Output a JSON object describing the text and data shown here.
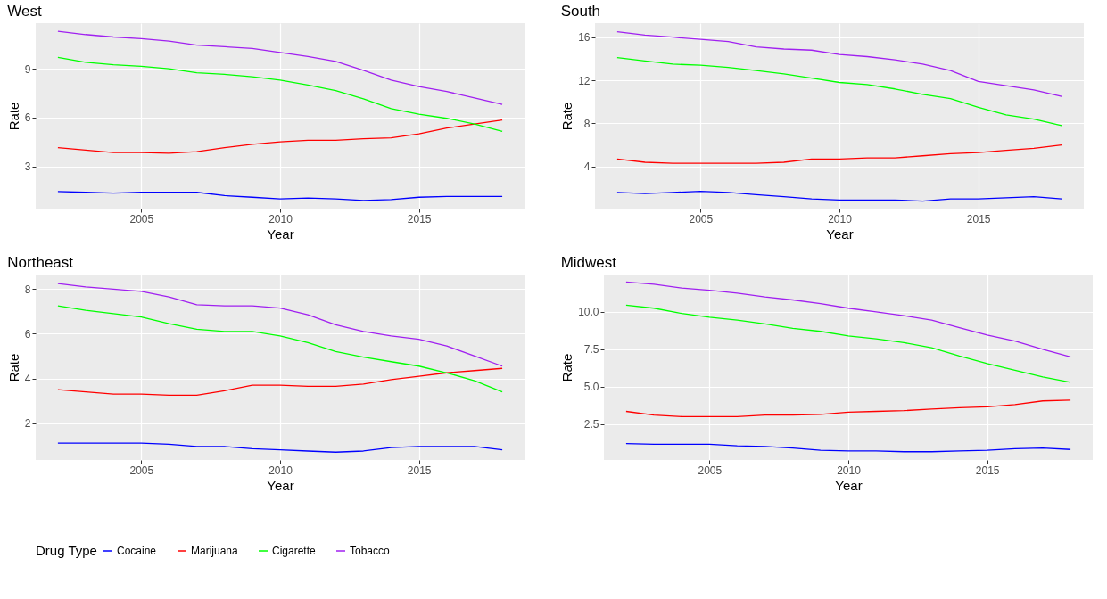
{
  "chart_data": [
    {
      "type": "line",
      "title": "West",
      "xlabel": "Year",
      "ylabel": "Rate",
      "legend": "bottom",
      "legend_title": "Drug Type",
      "grid": true,
      "line_style": "solid",
      "x": [
        2002,
        2003,
        2004,
        2005,
        2006,
        2007,
        2008,
        2009,
        2010,
        2011,
        2012,
        2013,
        2014,
        2015,
        2016,
        2017,
        2018
      ],
      "xlim": [
        2001.2,
        2018.8
      ],
      "xticks": [
        2005,
        2010,
        2015
      ],
      "ylim": [
        0.4,
        11.8
      ],
      "yticks": [
        3,
        6,
        9
      ],
      "series": [
        {
          "name": "Cocaine",
          "color": "#0000ff",
          "values": [
            1.45,
            1.4,
            1.35,
            1.4,
            1.4,
            1.4,
            1.2,
            1.1,
            1.0,
            1.05,
            1.0,
            0.9,
            0.95,
            1.1,
            1.15,
            1.15,
            1.15
          ]
        },
        {
          "name": "Marijuana",
          "color": "#ff0000",
          "values": [
            4.15,
            4.0,
            3.85,
            3.85,
            3.8,
            3.9,
            4.15,
            4.35,
            4.5,
            4.6,
            4.6,
            4.7,
            4.75,
            5.0,
            5.35,
            5.6,
            5.85
          ]
        },
        {
          "name": "Cigarette",
          "color": "#00ff00",
          "values": [
            9.7,
            9.4,
            9.25,
            9.15,
            9.0,
            8.75,
            8.65,
            8.5,
            8.3,
            8.0,
            7.65,
            7.15,
            6.55,
            6.2,
            5.95,
            5.6,
            5.15
          ]
        },
        {
          "name": "Tobacco",
          "color": "#a020f0",
          "values": [
            11.3,
            11.1,
            10.95,
            10.85,
            10.7,
            10.45,
            10.35,
            10.25,
            10.0,
            9.75,
            9.45,
            8.9,
            8.3,
            7.9,
            7.6,
            7.2,
            6.8
          ]
        }
      ]
    },
    {
      "type": "line",
      "title": "South",
      "xlabel": "Year",
      "ylabel": "Rate",
      "legend": "bottom",
      "grid": true,
      "line_style": "solid",
      "x": [
        2002,
        2003,
        2004,
        2005,
        2006,
        2007,
        2008,
        2009,
        2010,
        2011,
        2012,
        2013,
        2014,
        2015,
        2016,
        2017,
        2018
      ],
      "xlim": [
        2001.2,
        2018.8
      ],
      "xticks": [
        2005,
        2010,
        2015
      ],
      "ylim": [
        0.1,
        17.3
      ],
      "yticks": [
        4,
        8,
        12,
        16
      ],
      "series": [
        {
          "name": "Cocaine",
          "color": "#0000ff",
          "values": [
            1.6,
            1.5,
            1.6,
            1.7,
            1.6,
            1.4,
            1.2,
            1.0,
            0.9,
            0.9,
            0.9,
            0.8,
            1.0,
            1.0,
            1.1,
            1.2,
            1.0
          ]
        },
        {
          "name": "Marijuana",
          "color": "#ff0000",
          "values": [
            4.7,
            4.4,
            4.3,
            4.3,
            4.3,
            4.3,
            4.4,
            4.7,
            4.7,
            4.8,
            4.8,
            5.0,
            5.2,
            5.3,
            5.5,
            5.7,
            6.0
          ]
        },
        {
          "name": "Cigarette",
          "color": "#00ff00",
          "values": [
            14.1,
            13.8,
            13.5,
            13.4,
            13.2,
            12.9,
            12.6,
            12.2,
            11.8,
            11.6,
            11.2,
            10.7,
            10.3,
            9.5,
            8.8,
            8.4,
            7.8
          ]
        },
        {
          "name": "Tobacco",
          "color": "#a020f0",
          "values": [
            16.5,
            16.2,
            16.0,
            15.8,
            15.6,
            15.1,
            14.9,
            14.8,
            14.4,
            14.2,
            13.9,
            13.5,
            12.9,
            11.9,
            11.5,
            11.1,
            10.5
          ]
        }
      ]
    },
    {
      "type": "line",
      "title": "Northeast",
      "xlabel": "Year",
      "ylabel": "Rate",
      "legend": "bottom",
      "grid": true,
      "line_style": "solid",
      "x": [
        2002,
        2003,
        2004,
        2005,
        2006,
        2007,
        2008,
        2009,
        2010,
        2011,
        2012,
        2013,
        2014,
        2015,
        2016,
        2017,
        2018
      ],
      "xlim": [
        2001.2,
        2018.8
      ],
      "xticks": [
        2005,
        2010,
        2015
      ],
      "ylim": [
        0.35,
        8.65
      ],
      "yticks": [
        2,
        4,
        6,
        8
      ],
      "series": [
        {
          "name": "Cocaine",
          "color": "#0000ff",
          "values": [
            1.1,
            1.1,
            1.1,
            1.1,
            1.05,
            0.95,
            0.95,
            0.85,
            0.8,
            0.75,
            0.7,
            0.75,
            0.9,
            0.95,
            0.95,
            0.95,
            0.8
          ]
        },
        {
          "name": "Marijuana",
          "color": "#ff0000",
          "values": [
            3.5,
            3.4,
            3.3,
            3.3,
            3.25,
            3.25,
            3.45,
            3.7,
            3.7,
            3.65,
            3.65,
            3.75,
            3.95,
            4.1,
            4.25,
            4.35,
            4.45
          ]
        },
        {
          "name": "Cigarette",
          "color": "#00ff00",
          "values": [
            7.25,
            7.05,
            6.9,
            6.75,
            6.45,
            6.2,
            6.1,
            6.1,
            5.9,
            5.6,
            5.2,
            4.95,
            4.75,
            4.55,
            4.25,
            3.9,
            3.4
          ]
        },
        {
          "name": "Tobacco",
          "color": "#a020f0",
          "values": [
            8.25,
            8.1,
            8.0,
            7.9,
            7.65,
            7.3,
            7.25,
            7.25,
            7.15,
            6.85,
            6.4,
            6.1,
            5.9,
            5.75,
            5.45,
            5.0,
            4.55
          ]
        }
      ]
    },
    {
      "type": "line",
      "title": "Midwest",
      "xlabel": "Year",
      "ylabel": "Rate",
      "legend": "bottom",
      "grid": true,
      "line_style": "solid",
      "x": [
        2002,
        2003,
        2004,
        2005,
        2006,
        2007,
        2008,
        2009,
        2010,
        2011,
        2012,
        2013,
        2014,
        2015,
        2016,
        2017,
        2018
      ],
      "xlim": [
        2001.2,
        2018.8
      ],
      "xticks": [
        2005,
        2010,
        2015
      ],
      "ylim": [
        0.1,
        12.5
      ],
      "yticks": [
        2.5,
        {
          "value": 5,
          "label": "5.0"
        },
        7.5,
        {
          "value": 10,
          "label": "10.0"
        }
      ],
      "series": [
        {
          "name": "Cocaine",
          "color": "#0000ff",
          "values": [
            1.2,
            1.15,
            1.15,
            1.15,
            1.05,
            1.0,
            0.9,
            0.75,
            0.7,
            0.7,
            0.65,
            0.65,
            0.7,
            0.75,
            0.85,
            0.9,
            0.8
          ]
        },
        {
          "name": "Marijuana",
          "color": "#ff0000",
          "values": [
            3.35,
            3.1,
            3.0,
            3.0,
            3.0,
            3.1,
            3.1,
            3.15,
            3.3,
            3.35,
            3.4,
            3.5,
            3.6,
            3.65,
            3.8,
            4.05,
            4.1
          ]
        },
        {
          "name": "Cigarette",
          "color": "#00ff00",
          "values": [
            10.45,
            10.25,
            9.9,
            9.65,
            9.45,
            9.2,
            8.9,
            8.7,
            8.4,
            8.2,
            7.95,
            7.6,
            7.05,
            6.55,
            6.1,
            5.65,
            5.3
          ]
        },
        {
          "name": "Tobacco",
          "color": "#a020f0",
          "values": [
            12.0,
            11.85,
            11.6,
            11.45,
            11.25,
            11.0,
            10.8,
            10.55,
            10.25,
            10.0,
            9.75,
            9.45,
            8.95,
            8.45,
            8.05,
            7.5,
            7.0
          ]
        }
      ]
    }
  ]
}
